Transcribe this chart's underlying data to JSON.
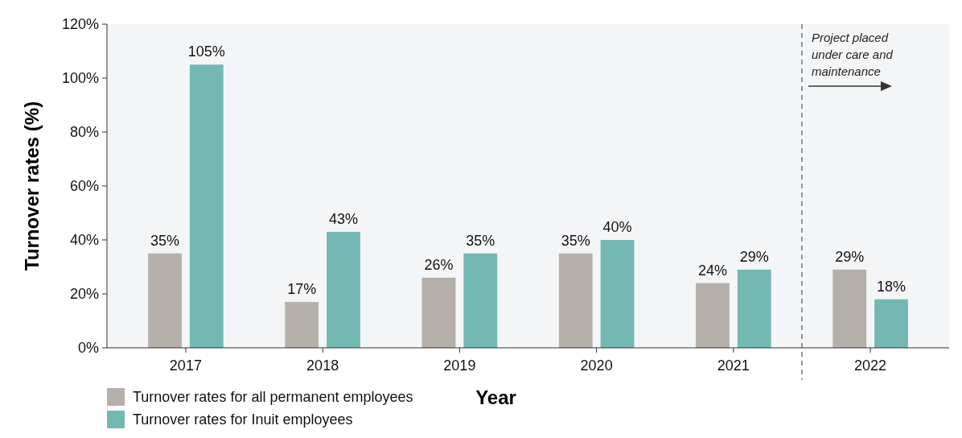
{
  "chart_data": {
    "type": "bar",
    "xlabel": "Year",
    "ylabel": "Turnover rates (%)",
    "categories": [
      "2017",
      "2018",
      "2019",
      "2020",
      "2021",
      "2022"
    ],
    "series": [
      {
        "name": "Turnover rates for all permanent employees",
        "color": "#b5b0aa",
        "values": [
          35,
          17,
          26,
          35,
          24,
          29
        ],
        "value_labels": [
          "35%",
          "17%",
          "26%",
          "35%",
          "24%",
          "29%"
        ]
      },
      {
        "name": "Turnover rates for Inuit employees",
        "color": "#74b8b3",
        "values": [
          105,
          43,
          35,
          40,
          29,
          18
        ],
        "value_labels": [
          "105%",
          "43%",
          "35%",
          "40%",
          "29%",
          "18%"
        ]
      }
    ],
    "ylim": [
      0,
      120
    ],
    "yticks": [
      {
        "value": 0,
        "label": "0%"
      },
      {
        "value": 20,
        "label": "20%"
      },
      {
        "value": 40,
        "label": "40%"
      },
      {
        "value": 60,
        "label": "60%"
      },
      {
        "value": 80,
        "label": "80%"
      },
      {
        "value": 100,
        "label": "100%"
      },
      {
        "value": 120,
        "label": "120%"
      }
    ],
    "grid": false,
    "legend": "bottom left",
    "annotations": [
      "Project placed under care and maintenance"
    ]
  }
}
